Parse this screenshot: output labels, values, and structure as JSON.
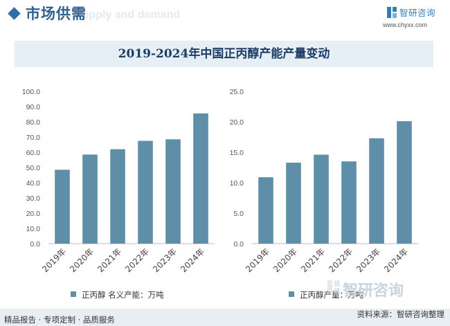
{
  "header": {
    "title": "市场供需",
    "ghost_text": "Supply and demand",
    "brand_name": "智研咨询",
    "brand_url": "www.chyxx.com"
  },
  "banner": {
    "title": "2019-2024年中国正丙醇产能产量变动"
  },
  "chart_data": [
    {
      "type": "bar",
      "categories": [
        "2019年",
        "2020年",
        "2021年",
        "2022年",
        "2023年",
        "2024年"
      ],
      "series": [
        {
          "name": "正丙醇 名义产能：万吨",
          "values": [
            48.5,
            58.5,
            62,
            67.5,
            68.5,
            85.5
          ]
        }
      ],
      "ylim": [
        0,
        100
      ],
      "yticks": [
        "0.0",
        "10.0",
        "20.0",
        "30.0",
        "40.0",
        "50.0",
        "60.0",
        "70.0",
        "80.0",
        "90.0",
        "100.0"
      ],
      "grid": false,
      "legend_position": "bottom"
    },
    {
      "type": "bar",
      "categories": [
        "2019年",
        "2020年",
        "2021年",
        "2022年",
        "2023年",
        "2024年"
      ],
      "series": [
        {
          "name": "正丙醇产量：万吨",
          "values": [
            10.9,
            13.3,
            14.6,
            13.5,
            17.3,
            20.1
          ]
        }
      ],
      "ylim": [
        0,
        25
      ],
      "yticks": [
        "0.0",
        "5.0",
        "10.0",
        "15.0",
        "20.0",
        "25.0"
      ],
      "grid": false,
      "legend_position": "bottom"
    }
  ],
  "colors": {
    "bar": "#5f8ea8",
    "accent": "#2f6ea8",
    "banner_bg": "#e6eef6",
    "footer_bg": "#e9eef3"
  },
  "watermark": {
    "text": "智研咨询"
  },
  "footer": {
    "left": "精品报告 · 专项定制 · 品质服务",
    "right": "资料来源：智研咨询整理"
  }
}
